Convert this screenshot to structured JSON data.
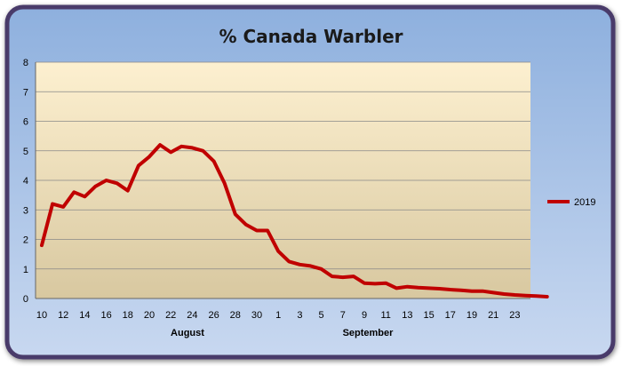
{
  "chart_data": {
    "type": "line",
    "title": "% Canada Warbler",
    "xlabel": "",
    "ylabel": "",
    "ylim": [
      0,
      8
    ],
    "yticks": [
      0,
      1,
      2,
      3,
      4,
      5,
      6,
      7,
      8
    ],
    "grid": true,
    "legend_position": "right",
    "x_tick_labels": [
      "10",
      "12",
      "14",
      "16",
      "18",
      "20",
      "22",
      "24",
      "26",
      "28",
      "30",
      "1",
      "3",
      "5",
      "7",
      "9",
      "11",
      "13",
      "15",
      "17",
      "19",
      "21",
      "23"
    ],
    "month_labels": [
      "August",
      "September"
    ],
    "colors": {
      "series": "#c00000",
      "plot_top": "#fdf0d0",
      "plot_bottom": "#d8c8a0",
      "outer_top": "#8eb0de",
      "outer_bottom": "#c8d8f0",
      "border": "#4a3a6a"
    },
    "series": [
      {
        "name": "2019",
        "values": [
          1.8,
          3.2,
          3.1,
          3.6,
          3.45,
          3.8,
          4.0,
          3.9,
          3.65,
          4.5,
          4.8,
          5.2,
          4.95,
          5.15,
          5.1,
          5.0,
          4.65,
          3.9,
          2.85,
          2.5,
          2.3,
          2.3,
          1.6,
          1.25,
          1.15,
          1.1,
          1.0,
          0.75,
          0.72,
          0.75,
          0.52,
          0.5,
          0.52,
          0.35,
          0.4,
          0.37,
          0.35,
          0.33,
          0.3,
          0.28,
          0.25,
          0.25,
          0.2,
          0.15,
          0.12,
          0.1,
          0.08,
          0.06
        ]
      }
    ]
  }
}
